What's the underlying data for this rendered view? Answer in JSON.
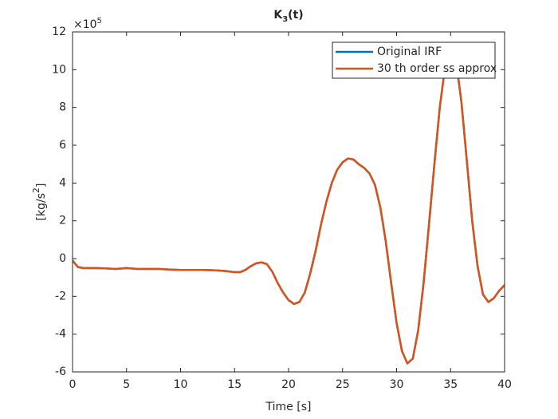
{
  "chart_data": {
    "type": "line",
    "title": [
      "K",
      "3",
      "(t)"
    ],
    "xlabel": "Time [s]",
    "ylabel": [
      "[kg/s",
      "2",
      "]"
    ],
    "y_multiplier": [
      "×10",
      "5"
    ],
    "x": [
      0,
      0.5,
      1,
      2,
      3,
      4,
      5,
      6,
      7,
      8,
      9,
      10,
      11,
      12,
      13,
      14,
      15,
      15.5,
      16,
      16.5,
      17,
      17.5,
      18,
      18.5,
      19,
      19.5,
      20,
      20.5,
      21,
      21.5,
      22,
      22.5,
      23,
      23.5,
      24,
      24.5,
      25,
      25.5,
      26,
      26.5,
      27,
      27.5,
      28,
      28.5,
      29,
      29.5,
      30,
      30.5,
      31,
      31.5,
      32,
      32.5,
      33,
      33.5,
      34,
      34.5,
      35,
      35.5,
      36,
      36.5,
      37,
      37.5,
      38,
      38.5,
      39,
      39.5,
      40
    ],
    "series": [
      {
        "name": "Original IRF",
        "color": "#0072bd",
        "values": [
          -0.1,
          -0.45,
          -0.5,
          -0.5,
          -0.52,
          -0.55,
          -0.5,
          -0.55,
          -0.55,
          -0.55,
          -0.58,
          -0.6,
          -0.6,
          -0.6,
          -0.62,
          -0.65,
          -0.72,
          -0.72,
          -0.6,
          -0.4,
          -0.25,
          -0.2,
          -0.3,
          -0.7,
          -1.3,
          -1.8,
          -2.2,
          -2.4,
          -2.3,
          -1.8,
          -0.8,
          0.4,
          1.8,
          3.0,
          4.0,
          4.7,
          5.1,
          5.3,
          5.25,
          5.0,
          4.8,
          4.5,
          3.9,
          2.7,
          0.9,
          -1.3,
          -3.4,
          -4.9,
          -5.55,
          -5.3,
          -3.8,
          -1.3,
          1.8,
          5.0,
          8.0,
          10.2,
          11.2,
          10.5,
          8.3,
          5.2,
          2.0,
          -0.4,
          -1.9,
          -2.3,
          -2.1,
          -1.7,
          -1.4
        ]
      },
      {
        "name": "30 th order ss approx",
        "color": "#d95319",
        "values": [
          -0.1,
          -0.45,
          -0.5,
          -0.5,
          -0.52,
          -0.55,
          -0.5,
          -0.55,
          -0.55,
          -0.55,
          -0.58,
          -0.6,
          -0.6,
          -0.6,
          -0.62,
          -0.65,
          -0.72,
          -0.72,
          -0.6,
          -0.4,
          -0.25,
          -0.2,
          -0.3,
          -0.7,
          -1.3,
          -1.8,
          -2.2,
          -2.4,
          -2.3,
          -1.8,
          -0.8,
          0.4,
          1.8,
          3.0,
          4.0,
          4.7,
          5.1,
          5.3,
          5.25,
          5.0,
          4.8,
          4.5,
          3.9,
          2.7,
          0.9,
          -1.3,
          -3.4,
          -4.9,
          -5.55,
          -5.3,
          -3.8,
          -1.3,
          1.8,
          5.0,
          8.0,
          10.2,
          11.2,
          10.5,
          8.3,
          5.2,
          2.0,
          -0.4,
          -1.9,
          -2.3,
          -2.1,
          -1.7,
          -1.4
        ]
      }
    ],
    "xlim": [
      0,
      40
    ],
    "xticks": [
      0,
      5,
      10,
      15,
      20,
      25,
      30,
      35,
      40
    ],
    "ylim": [
      -6,
      12
    ],
    "yticks": [
      -6,
      -4,
      -2,
      0,
      2,
      4,
      6,
      8,
      10,
      12
    ],
    "legend": "top-right"
  }
}
